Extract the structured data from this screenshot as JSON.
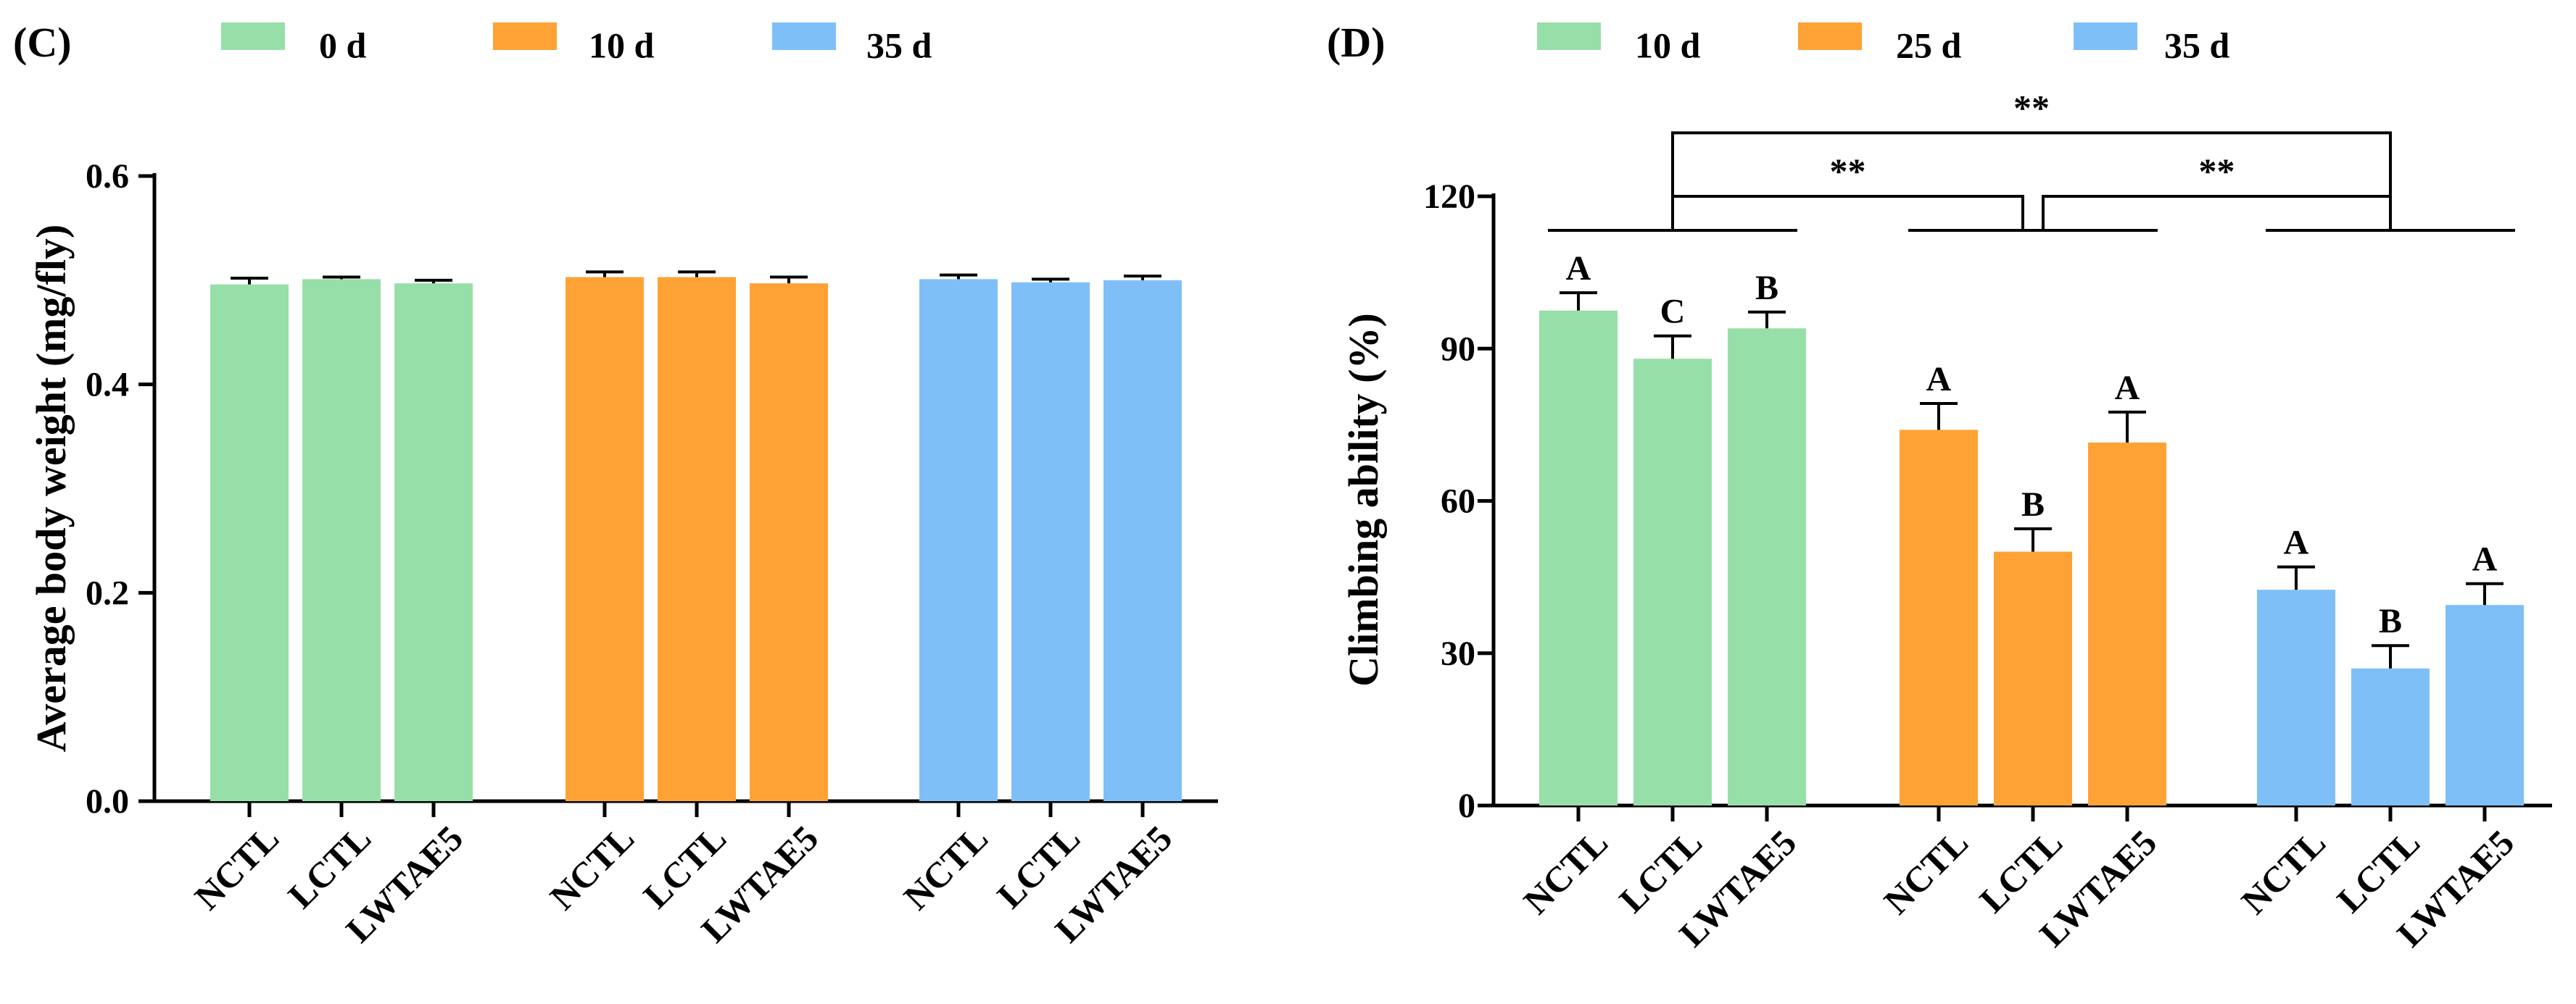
{
  "chart_data": [
    {
      "panel": "(C)",
      "type": "bar",
      "ylabel": "Average body weight (mg/fly)",
      "ylim": [
        0,
        0.6
      ],
      "yticks": [
        "0.0",
        "0.2",
        "0.4",
        "0.6"
      ],
      "groups": [
        {
          "name": "0 d",
          "color": "#97dfa9",
          "categories": [
            "NCTL",
            "LCTL",
            "LWTAE5"
          ],
          "values": [
            0.496,
            0.501,
            0.497
          ],
          "errors": [
            0.006,
            0.002,
            0.003
          ],
          "letters": [
            "",
            "",
            ""
          ]
        },
        {
          "name": "10 d",
          "color": "#fea235",
          "categories": [
            "NCTL",
            "LCTL",
            "LWTAE5"
          ],
          "values": [
            0.503,
            0.503,
            0.497
          ],
          "errors": [
            0.005,
            0.005,
            0.006
          ],
          "letters": [
            "",
            "",
            ""
          ]
        },
        {
          "name": "35 d",
          "color": "#7fbff7",
          "categories": [
            "NCTL",
            "LCTL",
            "LWTAE5"
          ],
          "values": [
            0.501,
            0.498,
            0.5
          ],
          "errors": [
            0.004,
            0.003,
            0.004
          ],
          "letters": [
            "",
            "",
            ""
          ]
        }
      ],
      "annotations": []
    },
    {
      "panel": "(D)",
      "type": "bar",
      "ylabel": "Climbing ability (%)",
      "ylim": [
        0,
        120
      ],
      "yticks": [
        "0",
        "30",
        "60",
        "90",
        "120"
      ],
      "groups": [
        {
          "name": "10 d",
          "color": "#97dfa9",
          "categories": [
            "NCTL",
            "LCTL",
            "LWTAE5"
          ],
          "values": [
            97.5,
            88.0,
            94.0
          ],
          "errors": [
            3.5,
            4.5,
            3.2
          ],
          "letters": [
            "A",
            "C",
            "B"
          ]
        },
        {
          "name": "25 d",
          "color": "#fea235",
          "categories": [
            "NCTL",
            "LCTL",
            "LWTAE5"
          ],
          "values": [
            74.0,
            50.0,
            71.5
          ],
          "errors": [
            5.2,
            4.5,
            6.0
          ],
          "letters": [
            "A",
            "B",
            "A"
          ]
        },
        {
          "name": "35 d",
          "color": "#7fbff7",
          "categories": [
            "NCTL",
            "LCTL",
            "LWTAE5"
          ],
          "values": [
            42.5,
            27.0,
            39.5
          ],
          "errors": [
            4.5,
            4.5,
            4.2
          ],
          "letters": [
            "A",
            "B",
            "A"
          ]
        }
      ],
      "annotations": [
        {
          "text": "**",
          "from_group": 0,
          "to_group": 1
        },
        {
          "text": "**",
          "from_group": 1,
          "to_group": 2
        },
        {
          "text": "**",
          "from_group": 0,
          "to_group": 2
        }
      ]
    }
  ]
}
